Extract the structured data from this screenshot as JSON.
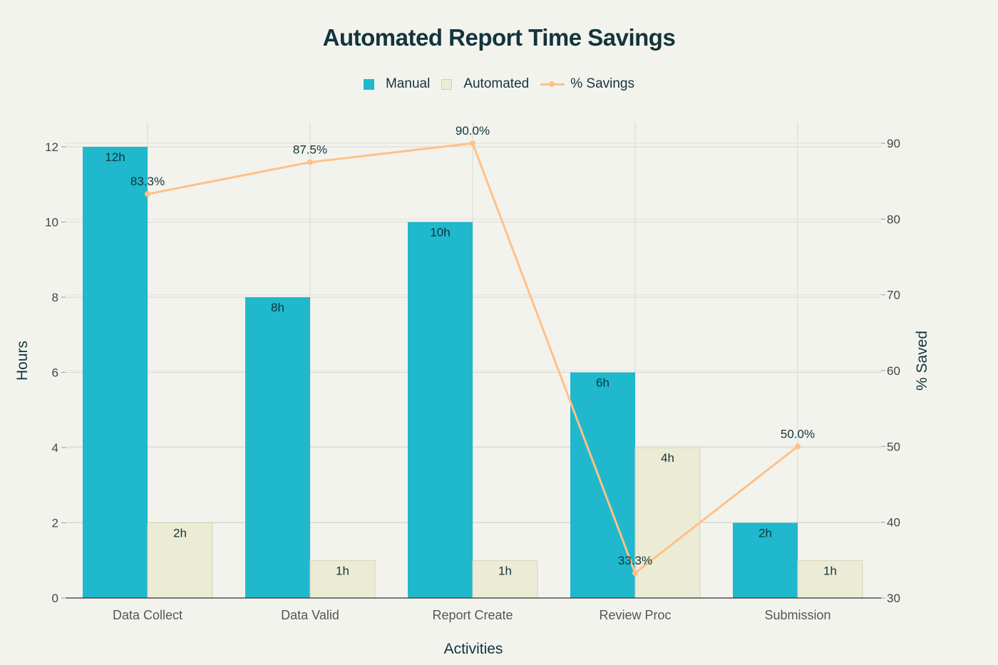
{
  "title": "Automated Report Time Savings",
  "legend": {
    "manual": "Manual",
    "automated": "Automated",
    "savings": "% Savings"
  },
  "colors": {
    "manual": "#1fb8cd",
    "automated": "#ecebd5",
    "savings": "#ffc185",
    "text": "#13343b",
    "grid": "#d8d8d2"
  },
  "chart_data": {
    "type": "bar",
    "categories": [
      "Data Collect",
      "Data Valid",
      "Report Create",
      "Review Proc",
      "Submission"
    ],
    "series": [
      {
        "name": "Manual",
        "values": [
          12,
          8,
          10,
          6,
          2
        ],
        "labels": [
          "12h",
          "8h",
          "10h",
          "6h",
          "2h"
        ]
      },
      {
        "name": "Automated",
        "values": [
          2,
          1,
          1,
          4,
          1
        ],
        "labels": [
          "2h",
          "1h",
          "1h",
          "4h",
          "1h"
        ]
      }
    ],
    "line_series": {
      "name": "% Savings",
      "axis": "right",
      "values": [
        83.3,
        87.5,
        90.0,
        33.3,
        50.0
      ],
      "labels": [
        "83.3%",
        "87.5%",
        "90.0%",
        "33.3%",
        "50.0%"
      ]
    },
    "xlabel": "Activities",
    "ylabel": "Hours",
    "y2label": "% Saved",
    "ylim": [
      0,
      12
    ],
    "yticks": [
      0,
      2,
      4,
      6,
      8,
      10,
      12
    ],
    "y2lim": [
      30,
      90
    ],
    "y2ticks": [
      30,
      40,
      50,
      60,
      70,
      80,
      90
    ],
    "grid": true,
    "legend_position": "top-center"
  }
}
